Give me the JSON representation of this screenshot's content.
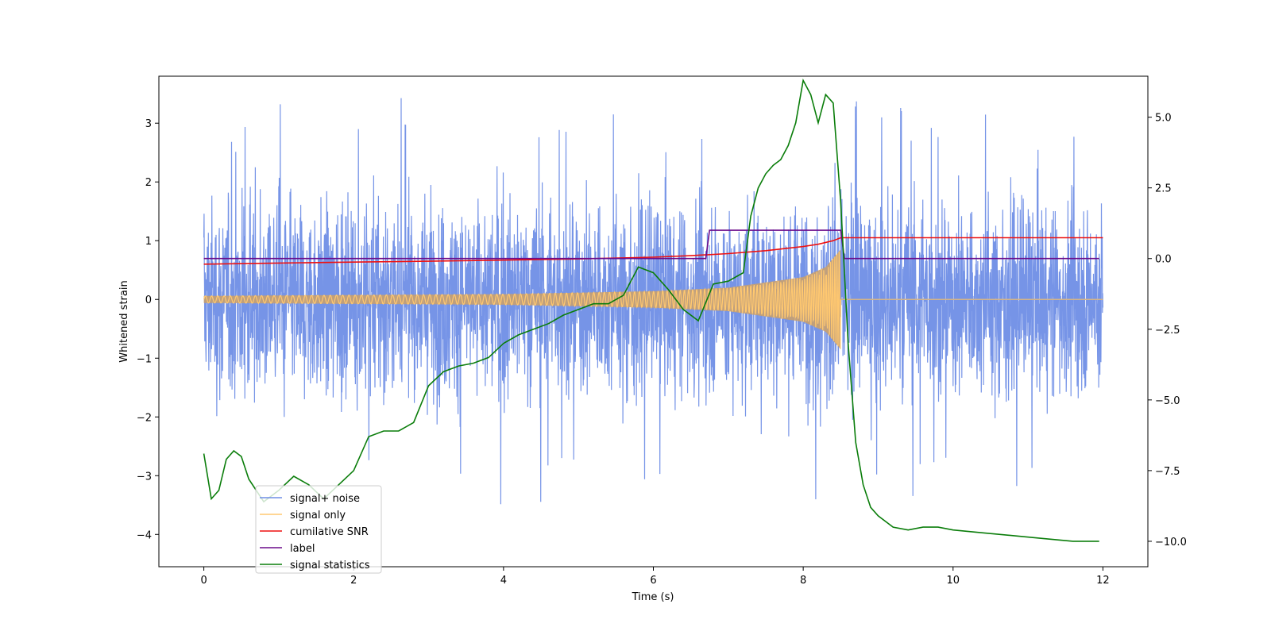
{
  "chart_data": {
    "type": "line",
    "title": "",
    "xlabel": "Time (s)",
    "ylabel": "Whitened strain",
    "y2label": "",
    "xlim": [
      -0.6,
      12.6
    ],
    "ylim": [
      -4.55,
      3.8
    ],
    "y2lim": [
      -10.9,
      6.45
    ],
    "x_ticks": [
      0,
      2,
      4,
      6,
      8,
      10,
      12
    ],
    "x_tick_labels": [
      "0",
      "2",
      "4",
      "6",
      "8",
      "10",
      "12"
    ],
    "y_ticks": [
      -4,
      -3,
      -2,
      -1,
      0,
      1,
      2,
      3
    ],
    "y_tick_labels": [
      "−4",
      "−3",
      "−2",
      "−1",
      "0",
      "1",
      "2",
      "3"
    ],
    "y2_ticks": [
      -10,
      -7.5,
      -5,
      -2.5,
      0,
      2.5,
      5
    ],
    "y2_tick_labels": [
      "−10.0",
      "−7.5",
      "−5.0",
      "−2.5",
      "0.0",
      "2.5",
      "5.0"
    ],
    "legend_location": "lower-left",
    "series": [
      {
        "name": "signal+ noise",
        "axis": "left",
        "color": "#6f8ee6",
        "noise": {
          "std": 0.8,
          "spike_max": 3.5,
          "spike_min": -4.1
        },
        "chirp_envelope": {
          "x": [
            0,
            4,
            6,
            7,
            8,
            8.3,
            8.5,
            8.55
          ],
          "amplitude": [
            0.06,
            0.09,
            0.14,
            0.2,
            0.38,
            0.55,
            0.85,
            0
          ]
        }
      },
      {
        "name": "signal only",
        "axis": "left",
        "color": "#ffc870",
        "envelope": {
          "x": [
            0,
            4,
            6,
            7,
            8,
            8.3,
            8.5,
            8.55
          ],
          "amplitude": [
            0.06,
            0.09,
            0.14,
            0.2,
            0.38,
            0.55,
            0.85,
            0
          ]
        },
        "after_merger_value": 0
      },
      {
        "name": "cumilative SNR",
        "axis": "left",
        "color": "#ee1111",
        "x": [
          0,
          1,
          2,
          3,
          4,
          5,
          6,
          6.5,
          7,
          7.5,
          8,
          8.2,
          8.4,
          8.5,
          12
        ],
        "y": [
          0.6,
          0.62,
          0.635,
          0.65,
          0.67,
          0.69,
          0.72,
          0.745,
          0.78,
          0.83,
          0.9,
          0.94,
          1.0,
          1.05,
          1.05
        ]
      },
      {
        "name": "label",
        "axis": "right",
        "color": "#6a0a8a",
        "x": [
          0,
          6.7,
          6.75,
          8.5,
          8.55,
          11.95
        ],
        "y": [
          0,
          0,
          1,
          1,
          0,
          0
        ]
      },
      {
        "name": "signal statistics",
        "axis": "right",
        "color": "#0a7d0a",
        "x": [
          0,
          0.1,
          0.2,
          0.3,
          0.4,
          0.5,
          0.6,
          0.8,
          1.0,
          1.2,
          1.4,
          1.6,
          1.8,
          2.0,
          2.2,
          2.4,
          2.6,
          2.8,
          3.0,
          3.2,
          3.4,
          3.6,
          3.8,
          4.0,
          4.2,
          4.4,
          4.6,
          4.8,
          5.0,
          5.2,
          5.4,
          5.6,
          5.8,
          6.0,
          6.2,
          6.4,
          6.6,
          6.8,
          7.0,
          7.2,
          7.3,
          7.4,
          7.5,
          7.6,
          7.7,
          7.8,
          7.9,
          8.0,
          8.1,
          8.2,
          8.3,
          8.4,
          8.5,
          8.6,
          8.7,
          8.8,
          8.9,
          9.0,
          9.2,
          9.4,
          9.6,
          9.8,
          10.0,
          10.4,
          10.8,
          11.2,
          11.6,
          11.95
        ],
        "y": [
          -6.9,
          -8.5,
          -8.2,
          -7.1,
          -6.8,
          -7.0,
          -7.8,
          -8.6,
          -8.2,
          -7.7,
          -8.0,
          -8.5,
          -8.0,
          -7.5,
          -6.3,
          -6.1,
          -6.1,
          -5.8,
          -4.5,
          -4.0,
          -3.8,
          -3.7,
          -3.5,
          -3.0,
          -2.7,
          -2.5,
          -2.3,
          -2.0,
          -1.8,
          -1.6,
          -1.6,
          -1.3,
          -0.3,
          -0.5,
          -1.1,
          -1.8,
          -2.2,
          -0.9,
          -0.8,
          -0.5,
          1.5,
          2.5,
          3.0,
          3.3,
          3.5,
          4.0,
          4.8,
          6.3,
          5.8,
          4.8,
          5.8,
          5.5,
          2.0,
          -3.0,
          -6.5,
          -8.0,
          -8.8,
          -9.1,
          -9.5,
          -9.6,
          -9.5,
          -9.5,
          -9.6,
          -9.7,
          -9.8,
          -9.9,
          -10.0,
          -10.0
        ]
      }
    ]
  }
}
